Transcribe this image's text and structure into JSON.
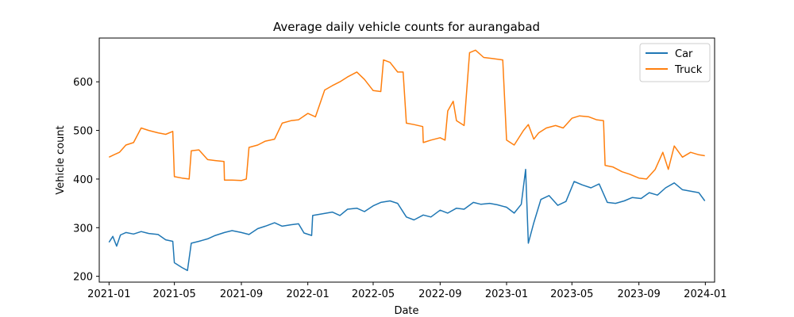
{
  "chart_data": {
    "type": "line",
    "title": "Average daily vehicle counts for aurangabad",
    "xlabel": "Date",
    "ylabel": "Vehicle count",
    "xlim": [
      "2020-12-14",
      "2024-01-18"
    ],
    "ylim": [
      188,
      690
    ],
    "x_ticks": [
      "2021-01",
      "2021-05",
      "2021-09",
      "2022-01",
      "2022-05",
      "2022-09",
      "2023-01",
      "2023-05",
      "2023-09",
      "2024-01"
    ],
    "y_ticks": [
      200,
      300,
      400,
      500,
      600
    ],
    "legend_position": "top-right",
    "grid": false,
    "series": [
      {
        "name": "Car",
        "color": "#1f77b4",
        "points": [
          [
            "2021-01-01",
            270
          ],
          [
            "2021-01-08",
            282
          ],
          [
            "2021-01-15",
            262
          ],
          [
            "2021-01-22",
            285
          ],
          [
            "2021-02-01",
            290
          ],
          [
            "2021-02-15",
            287
          ],
          [
            "2021-03-01",
            292
          ],
          [
            "2021-03-15",
            288
          ],
          [
            "2021-04-01",
            286
          ],
          [
            "2021-04-15",
            275
          ],
          [
            "2021-04-28",
            272
          ],
          [
            "2021-05-01",
            228
          ],
          [
            "2021-05-15",
            218
          ],
          [
            "2021-05-25",
            212
          ],
          [
            "2021-06-01",
            268
          ],
          [
            "2021-06-15",
            272
          ],
          [
            "2021-07-01",
            277
          ],
          [
            "2021-07-15",
            284
          ],
          [
            "2021-08-01",
            290
          ],
          [
            "2021-08-15",
            294
          ],
          [
            "2021-09-01",
            290
          ],
          [
            "2021-09-15",
            286
          ],
          [
            "2021-10-01",
            298
          ],
          [
            "2021-10-15",
            303
          ],
          [
            "2021-11-01",
            310
          ],
          [
            "2021-11-15",
            303
          ],
          [
            "2021-12-01",
            306
          ],
          [
            "2021-12-15",
            308
          ],
          [
            "2021-12-25",
            289
          ],
          [
            "2022-01-08",
            284
          ],
          [
            "2022-01-10",
            325
          ],
          [
            "2022-01-25",
            328
          ],
          [
            "2022-02-15",
            332
          ],
          [
            "2022-03-01",
            325
          ],
          [
            "2022-03-15",
            338
          ],
          [
            "2022-04-01",
            340
          ],
          [
            "2022-04-15",
            333
          ],
          [
            "2022-05-01",
            345
          ],
          [
            "2022-05-15",
            352
          ],
          [
            "2022-06-01",
            355
          ],
          [
            "2022-06-15",
            350
          ],
          [
            "2022-07-01",
            322
          ],
          [
            "2022-07-15",
            316
          ],
          [
            "2022-08-01",
            326
          ],
          [
            "2022-08-15",
            322
          ],
          [
            "2022-09-01",
            336
          ],
          [
            "2022-09-15",
            330
          ],
          [
            "2022-10-01",
            340
          ],
          [
            "2022-10-15",
            338
          ],
          [
            "2022-11-01",
            352
          ],
          [
            "2022-11-15",
            348
          ],
          [
            "2022-12-01",
            350
          ],
          [
            "2022-12-15",
            347
          ],
          [
            "2023-01-01",
            342
          ],
          [
            "2023-01-15",
            330
          ],
          [
            "2023-01-28",
            348
          ],
          [
            "2023-02-05",
            420
          ],
          [
            "2023-02-10",
            268
          ],
          [
            "2023-02-20",
            310
          ],
          [
            "2023-03-05",
            358
          ],
          [
            "2023-03-20",
            366
          ],
          [
            "2023-04-05",
            346
          ],
          [
            "2023-04-20",
            354
          ],
          [
            "2023-05-05",
            395
          ],
          [
            "2023-05-20",
            388
          ],
          [
            "2023-06-05",
            382
          ],
          [
            "2023-06-20",
            390
          ],
          [
            "2023-07-05",
            352
          ],
          [
            "2023-07-20",
            350
          ],
          [
            "2023-08-05",
            355
          ],
          [
            "2023-08-20",
            362
          ],
          [
            "2023-09-05",
            360
          ],
          [
            "2023-09-20",
            372
          ],
          [
            "2023-10-05",
            367
          ],
          [
            "2023-10-20",
            382
          ],
          [
            "2023-11-05",
            392
          ],
          [
            "2023-11-20",
            378
          ],
          [
            "2023-12-05",
            375
          ],
          [
            "2023-12-20",
            372
          ],
          [
            "2023-12-31",
            355
          ]
        ]
      },
      {
        "name": "Truck",
        "color": "#ff7f0e",
        "points": [
          [
            "2021-01-01",
            445
          ],
          [
            "2021-01-10",
            450
          ],
          [
            "2021-01-20",
            455
          ],
          [
            "2021-02-01",
            470
          ],
          [
            "2021-02-15",
            475
          ],
          [
            "2021-03-01",
            505
          ],
          [
            "2021-03-15",
            500
          ],
          [
            "2021-04-01",
            495
          ],
          [
            "2021-04-15",
            492
          ],
          [
            "2021-04-28",
            498
          ],
          [
            "2021-05-01",
            405
          ],
          [
            "2021-05-15",
            402
          ],
          [
            "2021-05-28",
            400
          ],
          [
            "2021-06-01",
            458
          ],
          [
            "2021-06-15",
            460
          ],
          [
            "2021-07-01",
            440
          ],
          [
            "2021-07-15",
            438
          ],
          [
            "2021-07-31",
            436
          ],
          [
            "2021-08-01",
            398
          ],
          [
            "2021-08-15",
            398
          ],
          [
            "2021-09-01",
            397
          ],
          [
            "2021-09-10",
            400
          ],
          [
            "2021-09-15",
            465
          ],
          [
            "2021-10-01",
            470
          ],
          [
            "2021-10-15",
            478
          ],
          [
            "2021-11-01",
            482
          ],
          [
            "2021-11-15",
            515
          ],
          [
            "2021-12-01",
            520
          ],
          [
            "2021-12-15",
            522
          ],
          [
            "2022-01-01",
            535
          ],
          [
            "2022-01-15",
            528
          ],
          [
            "2022-02-01",
            583
          ],
          [
            "2022-02-15",
            592
          ],
          [
            "2022-03-01",
            600
          ],
          [
            "2022-03-15",
            610
          ],
          [
            "2022-04-01",
            620
          ],
          [
            "2022-04-15",
            605
          ],
          [
            "2022-05-01",
            582
          ],
          [
            "2022-05-15",
            580
          ],
          [
            "2022-05-20",
            645
          ],
          [
            "2022-06-01",
            640
          ],
          [
            "2022-06-15",
            620
          ],
          [
            "2022-06-25",
            620
          ],
          [
            "2022-07-01",
            515
          ],
          [
            "2022-07-15",
            512
          ],
          [
            "2022-07-31",
            508
          ],
          [
            "2022-08-01",
            475
          ],
          [
            "2022-08-15",
            480
          ],
          [
            "2022-09-01",
            485
          ],
          [
            "2022-09-10",
            480
          ],
          [
            "2022-09-15",
            540
          ],
          [
            "2022-09-25",
            560
          ],
          [
            "2022-10-01",
            520
          ],
          [
            "2022-10-15",
            510
          ],
          [
            "2022-10-25",
            660
          ],
          [
            "2022-11-05",
            665
          ],
          [
            "2022-11-20",
            650
          ],
          [
            "2022-12-05",
            648
          ],
          [
            "2022-12-25",
            645
          ],
          [
            "2023-01-01",
            480
          ],
          [
            "2023-01-15",
            470
          ],
          [
            "2023-02-01",
            500
          ],
          [
            "2023-02-10",
            512
          ],
          [
            "2023-02-20",
            482
          ],
          [
            "2023-03-01",
            495
          ],
          [
            "2023-03-15",
            505
          ],
          [
            "2023-04-01",
            510
          ],
          [
            "2023-04-15",
            505
          ],
          [
            "2023-05-01",
            525
          ],
          [
            "2023-05-15",
            530
          ],
          [
            "2023-06-01",
            528
          ],
          [
            "2023-06-15",
            522
          ],
          [
            "2023-06-28",
            520
          ],
          [
            "2023-07-01",
            428
          ],
          [
            "2023-07-15",
            425
          ],
          [
            "2023-08-01",
            415
          ],
          [
            "2023-08-15",
            410
          ],
          [
            "2023-09-01",
            402
          ],
          [
            "2023-09-15",
            400
          ],
          [
            "2023-10-01",
            420
          ],
          [
            "2023-10-15",
            455
          ],
          [
            "2023-10-25",
            420
          ],
          [
            "2023-11-05",
            468
          ],
          [
            "2023-11-20",
            445
          ],
          [
            "2023-12-05",
            455
          ],
          [
            "2023-12-20",
            450
          ],
          [
            "2023-12-31",
            448
          ]
        ]
      }
    ]
  }
}
